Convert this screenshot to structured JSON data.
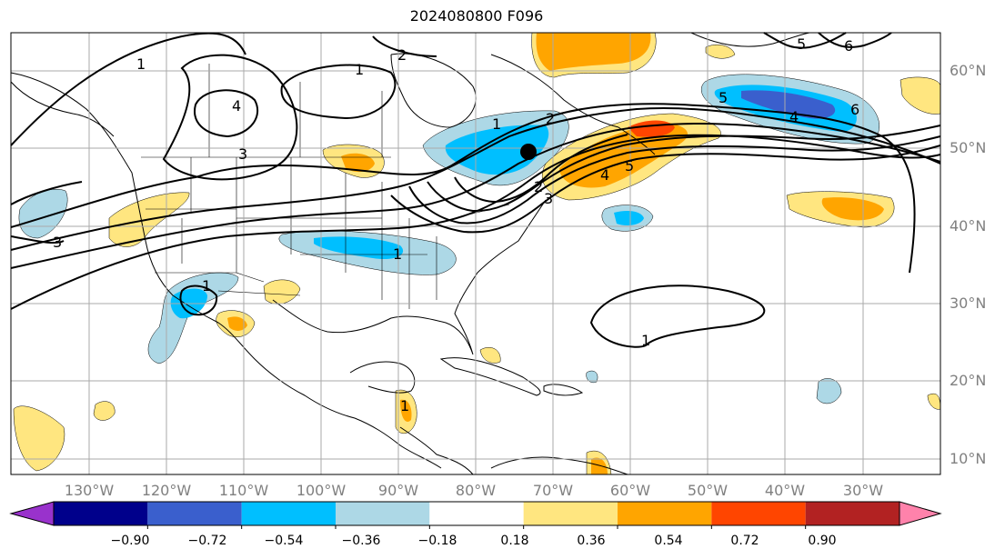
{
  "title": "2024080800 F096",
  "map": {
    "lat_labels": [
      "60°N",
      "50°N",
      "40°N",
      "30°N",
      "20°N",
      "10°N"
    ],
    "lon_labels": [
      "130°W",
      "120°W",
      "110°W",
      "100°W",
      "90°W",
      "80°W",
      "70°W",
      "60°W",
      "50°W",
      "40°W",
      "30°W"
    ],
    "contour_labels": [
      "1",
      "1",
      "2",
      "4",
      "3",
      "3",
      "1",
      "2",
      "5",
      "6",
      "5",
      "4",
      "6",
      "1",
      "2",
      "3",
      "4",
      "5",
      "1",
      "1",
      "1"
    ],
    "marker": "point-marker"
  },
  "colorbar": {
    "tick_labels": [
      "−0.90",
      "−0.72",
      "−0.54",
      "−0.36",
      "−0.18",
      "0.18",
      "0.36",
      "0.54",
      "0.72",
      "0.90"
    ],
    "colors": [
      "#9932cc",
      "#00008b",
      "#3a5fcd",
      "#00bfff",
      "#add8e6",
      "#ffffff",
      "#ffe680",
      "#ffa500",
      "#ff4500",
      "#b22222",
      "#ff82ab"
    ]
  }
}
